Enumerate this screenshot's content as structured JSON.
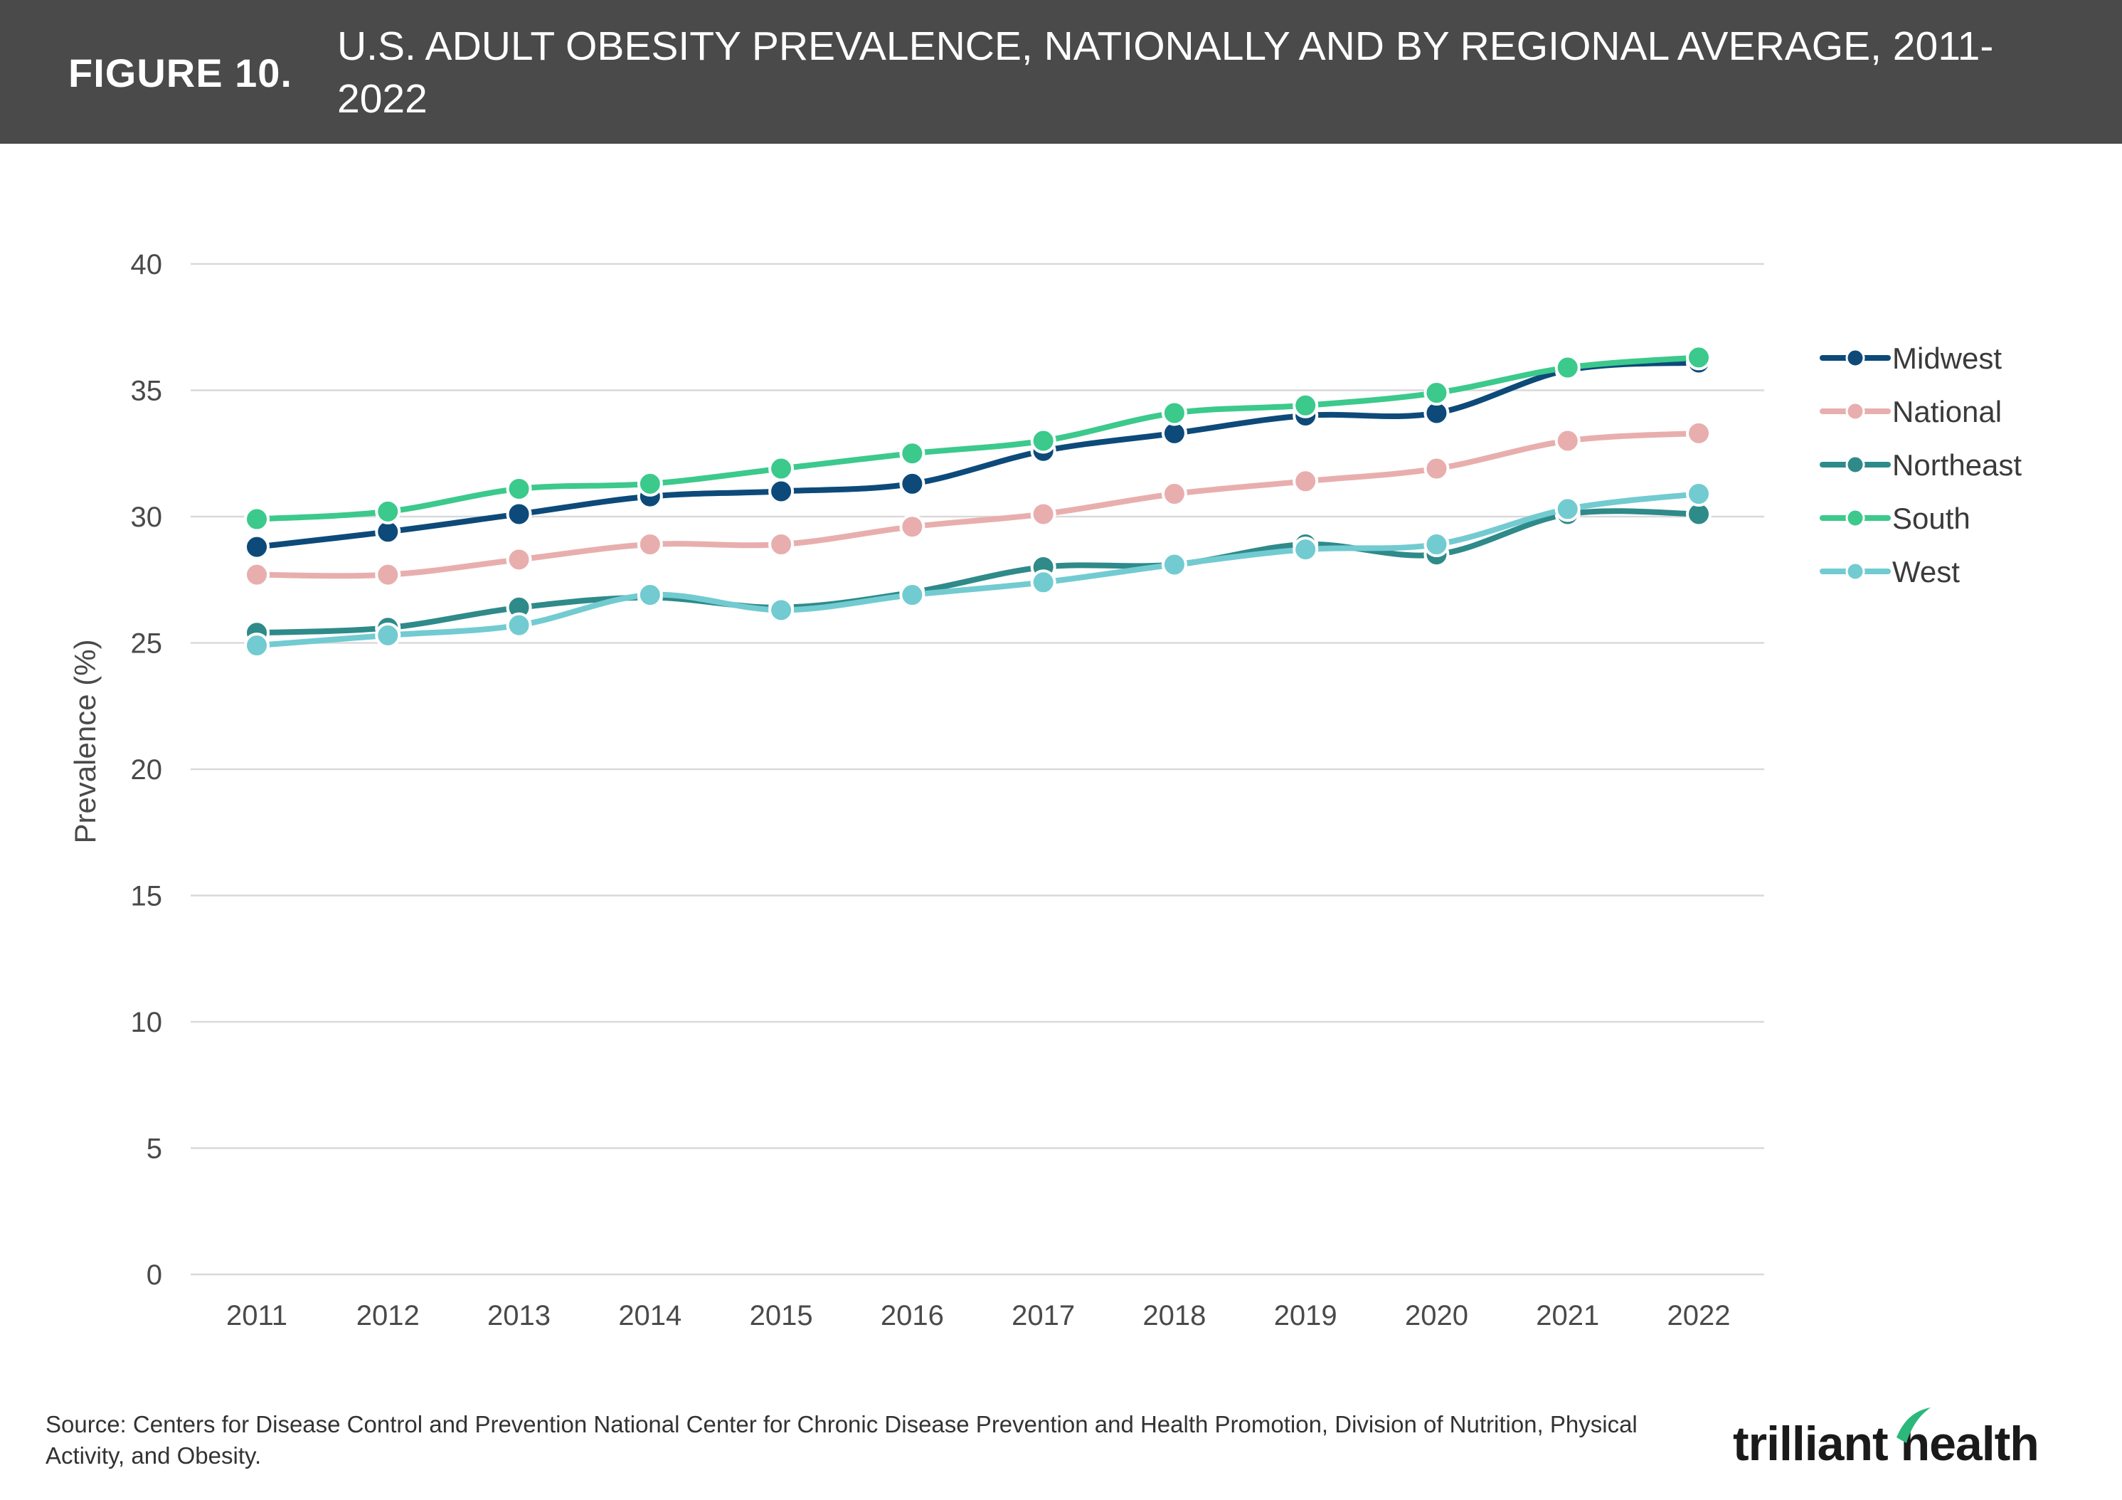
{
  "header": {
    "figure_label": "FIGURE 10.",
    "title": "U.S. ADULT OBESITY PREVALENCE, NATIONALLY AND BY REGIONAL AVERAGE, 2011-2022"
  },
  "footer": {
    "source": "Source: Centers for Disease Control and Prevention National Center for Chronic Disease Prevention and Health Promotion, Division of Nutrition, Physical Activity, and Obesity.",
    "logo_text": "trilliant health"
  },
  "colors": {
    "header_bg": "#4a4a4a",
    "grid": "#d9d9d9",
    "logo_accent": "#2bb87a"
  },
  "chart_data": {
    "type": "line",
    "title": "U.S. ADULT OBESITY PREVALENCE, NATIONALLY AND BY REGIONAL AVERAGE, 2011-2022",
    "xlabel": "",
    "ylabel": "Prevalence (%)",
    "ylim": [
      0,
      40
    ],
    "yticks": [
      0,
      5,
      10,
      15,
      20,
      25,
      30,
      35,
      40
    ],
    "grid": true,
    "legend_position": "right",
    "x": [
      "2011",
      "2012",
      "2013",
      "2014",
      "2015",
      "2016",
      "2017",
      "2018",
      "2019",
      "2020",
      "2021",
      "2022"
    ],
    "series": [
      {
        "name": "Midwest",
        "color": "#0d4a7a",
        "values": [
          28.8,
          29.4,
          30.1,
          30.8,
          31.0,
          31.3,
          32.6,
          33.3,
          34.0,
          34.1,
          35.8,
          36.1
        ]
      },
      {
        "name": "National",
        "color": "#e8aeae",
        "values": [
          27.7,
          27.7,
          28.3,
          28.9,
          28.9,
          29.6,
          30.1,
          30.9,
          31.4,
          31.9,
          33.0,
          33.3
        ]
      },
      {
        "name": "Northeast",
        "color": "#2f8a8a",
        "values": [
          25.4,
          25.6,
          26.4,
          26.8,
          26.4,
          27.0,
          28.0,
          28.1,
          28.9,
          28.5,
          30.1,
          30.1
        ]
      },
      {
        "name": "South",
        "color": "#3cc98c",
        "values": [
          29.9,
          30.2,
          31.1,
          31.3,
          31.9,
          32.5,
          33.0,
          34.1,
          34.4,
          34.9,
          35.9,
          36.3
        ]
      },
      {
        "name": "West",
        "color": "#72cbd1",
        "values": [
          24.9,
          25.3,
          25.7,
          26.9,
          26.3,
          26.9,
          27.4,
          28.1,
          28.7,
          28.9,
          30.3,
          30.9
        ]
      }
    ]
  }
}
